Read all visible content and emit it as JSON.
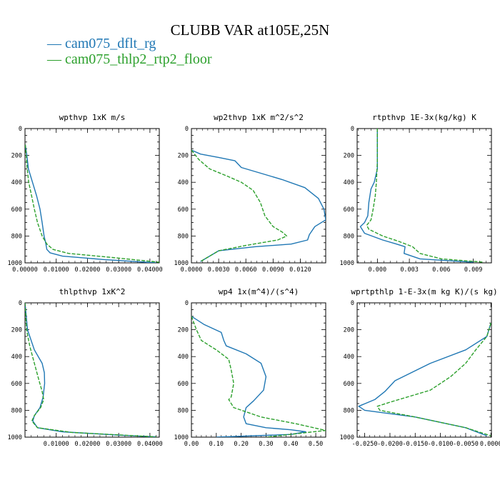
{
  "title": "CLUBB VAR at105E,25N",
  "legend": [
    {
      "label": "cam075_dflt_rg",
      "color": "#1f77b4"
    },
    {
      "label": "cam075_thlp2_rtp2_floor",
      "color": "#2ca02c"
    }
  ],
  "chart_data": [
    {
      "type": "line",
      "title": "wpthvp  1xK m/s",
      "xlim": [
        0,
        0.043
      ],
      "ylim": [
        1000,
        0
      ],
      "xticks": [
        "0.00000",
        "0.01000",
        "0.02000",
        "0.03000",
        "0.04000"
      ],
      "xtick_values": [
        0,
        0.01,
        0.02,
        0.03,
        0.04
      ],
      "yticks": [
        "0",
        "200",
        "400",
        "600",
        "800",
        "1000"
      ],
      "ytick_values": [
        0,
        200,
        400,
        600,
        800,
        1000
      ],
      "series": [
        {
          "name": "cam075_dflt_rg",
          "color": "#1f77b4",
          "dash": "",
          "x": [
            0.0001,
            0.0006,
            0.0011,
            0.0024,
            0.0037,
            0.0048,
            0.0055,
            0.0061,
            0.0066,
            0.007,
            0.008,
            0.012,
            0.025,
            0.042
          ],
          "y": [
            120,
            200,
            300,
            400,
            500,
            600,
            700,
            800,
            850,
            900,
            925,
            950,
            975,
            1000
          ]
        },
        {
          "name": "cam075_thlp2_rtp2_floor",
          "color": "#2ca02c",
          "dash": "5,2",
          "x": [
            0.0001,
            0.0004,
            0.0007,
            0.0012,
            0.0021,
            0.003,
            0.004,
            0.0055,
            0.007,
            0.009,
            0.014,
            0.028,
            0.043
          ],
          "y": [
            120,
            200,
            300,
            400,
            500,
            600,
            700,
            800,
            860,
            900,
            930,
            960,
            995
          ]
        }
      ]
    },
    {
      "type": "line",
      "title": "wp2thvp  1xK m^2/s^2",
      "xlim": [
        0,
        0.0148
      ],
      "ylim": [
        1000,
        0
      ],
      "xticks": [
        "0.0000",
        "0.0030",
        "0.0060",
        "0.0090",
        "0.0120"
      ],
      "xtick_values": [
        0,
        0.003,
        0.006,
        0.009,
        0.012
      ],
      "yticks": [
        "0",
        "200",
        "400",
        "600",
        "800",
        "1000"
      ],
      "ytick_values": [
        0,
        200,
        400,
        600,
        800,
        1000
      ],
      "series": [
        {
          "name": "cam075_dflt_rg",
          "color": "#1f77b4",
          "dash": "",
          "x": [
            0.0,
            0.001,
            0.003,
            0.0048,
            0.0055,
            0.0075,
            0.01,
            0.0125,
            0.014,
            0.0146,
            0.0148,
            0.0136,
            0.013,
            0.0128,
            0.011,
            0.007,
            0.003,
            0.002,
            0.001
          ],
          "y": [
            160,
            190,
            215,
            240,
            290,
            330,
            380,
            440,
            520,
            600,
            680,
            730,
            790,
            830,
            860,
            880,
            910,
            950,
            990
          ]
        },
        {
          "name": "cam075_thlp2_rtp2_floor",
          "color": "#2ca02c",
          "dash": "5,2",
          "x": [
            0.0,
            0.0008,
            0.002,
            0.0038,
            0.0055,
            0.0068,
            0.0076,
            0.0081,
            0.009,
            0.01,
            0.0105,
            0.0095,
            0.006,
            0.003,
            0.001
          ],
          "y": [
            160,
            230,
            300,
            350,
            400,
            460,
            550,
            650,
            730,
            770,
            800,
            830,
            870,
            910,
            990
          ]
        }
      ]
    },
    {
      "type": "line",
      "title": "rtpthvp  1E-3x(kg/kg) K",
      "xlim": [
        -0.0019,
        0.0107
      ],
      "ylim": [
        1000,
        0
      ],
      "xticks": [
        "0.000",
        "0.003",
        "0.006",
        "0.009"
      ],
      "xtick_values": [
        0,
        0.003,
        0.006,
        0.009
      ],
      "yticks": [
        "0",
        "200",
        "400",
        "600",
        "800",
        "1000"
      ],
      "ytick_values": [
        0,
        200,
        400,
        600,
        800,
        1000
      ],
      "series": [
        {
          "name": "cam075_dflt_rg",
          "color": "#1f77b4",
          "dash": "",
          "x": [
            0.0,
            0.0,
            -0.0003,
            -0.0006,
            -0.0008,
            -0.0009,
            -0.0012,
            -0.0016,
            -0.0012,
            0.0005,
            0.0018,
            0.0026,
            0.0025,
            0.004,
            0.009
          ],
          "y": [
            0,
            300,
            400,
            450,
            550,
            650,
            700,
            730,
            780,
            830,
            860,
            880,
            930,
            970,
            995
          ]
        },
        {
          "name": "cam075_thlp2_rtp2_floor",
          "color": "#2ca02c",
          "dash": "5,2",
          "x": [
            0.0,
            0.0,
            -0.0001,
            -0.0002,
            -0.0004,
            -0.0006,
            -0.001,
            -0.0008,
            0.0005,
            0.002,
            0.0033,
            0.004,
            0.006,
            0.01
          ],
          "y": [
            0,
            250,
            400,
            500,
            600,
            680,
            720,
            750,
            800,
            840,
            880,
            930,
            970,
            995
          ]
        }
      ]
    },
    {
      "type": "line",
      "title": "thlpthvp  1xK^2",
      "xlim": [
        0,
        0.043
      ],
      "ylim": [
        1000,
        0
      ],
      "xticks": [
        "0.01000",
        "0.02000",
        "0.03000",
        "0.04000"
      ],
      "xtick_values": [
        0.01,
        0.02,
        0.03,
        0.04
      ],
      "yticks": [
        "0",
        "200",
        "400",
        "600",
        "800",
        "1000"
      ],
      "ytick_values": [
        0,
        200,
        400,
        600,
        800,
        1000
      ],
      "series": [
        {
          "name": "cam075_dflt_rg",
          "color": "#1f77b4",
          "dash": "",
          "x": [
            0.0,
            0.0008,
            0.003,
            0.0055,
            0.0062,
            0.0063,
            0.0058,
            0.0048,
            0.003,
            0.0025,
            0.004,
            0.012,
            0.03,
            0.042
          ],
          "y": [
            0,
            200,
            350,
            450,
            520,
            600,
            700,
            780,
            840,
            880,
            930,
            960,
            985,
            998
          ]
        },
        {
          "name": "cam075_thlp2_rtp2_floor",
          "color": "#2ca02c",
          "dash": "5,2",
          "x": [
            0.0,
            0.0005,
            0.0015,
            0.003,
            0.0045,
            0.0055,
            0.006,
            0.005,
            0.003,
            0.0022,
            0.004,
            0.015,
            0.042
          ],
          "y": [
            0,
            200,
            320,
            450,
            580,
            660,
            720,
            780,
            840,
            880,
            930,
            965,
            998
          ]
        }
      ]
    },
    {
      "type": "line",
      "title": "wp4  1x(m^4)/(s^4)",
      "xlim": [
        0,
        0.54
      ],
      "ylim": [
        1000,
        0
      ],
      "xticks": [
        "0.00",
        "0.10",
        "0.20",
        "0.30",
        "0.40",
        "0.50"
      ],
      "xtick_values": [
        0,
        0.1,
        0.2,
        0.3,
        0.4,
        0.5
      ],
      "yticks": [
        "0",
        "200",
        "400",
        "600",
        "800",
        "1000"
      ],
      "ytick_values": [
        0,
        200,
        400,
        600,
        800,
        1000
      ],
      "series": [
        {
          "name": "cam075_dflt_rg",
          "color": "#1f77b4",
          "dash": "",
          "x": [
            0.0,
            0.05,
            0.12,
            0.13,
            0.14,
            0.22,
            0.28,
            0.3,
            0.29,
            0.25,
            0.22,
            0.21,
            0.22,
            0.3,
            0.4,
            0.46,
            0.4,
            0.1
          ],
          "y": [
            100,
            160,
            220,
            280,
            320,
            380,
            450,
            550,
            650,
            730,
            780,
            850,
            900,
            930,
            945,
            960,
            980,
            1000
          ]
        },
        {
          "name": "cam075_thlp2_rtp2_floor",
          "color": "#2ca02c",
          "dash": "5,2",
          "x": [
            0.0,
            0.02,
            0.04,
            0.1,
            0.15,
            0.16,
            0.17,
            0.16,
            0.15,
            0.17,
            0.28,
            0.42,
            0.54,
            0.3
          ],
          "y": [
            100,
            200,
            280,
            350,
            420,
            500,
            600,
            700,
            720,
            780,
            850,
            900,
            950,
            1000
          ]
        }
      ]
    },
    {
      "type": "line",
      "title": "wprtpthlp  1-E-3x(m kg K)/(s kg)",
      "xlim": [
        -0.0265,
        0.0001
      ],
      "ylim": [
        1000,
        0
      ],
      "xticks": [
        "-0.0250",
        "-0.0200",
        "-0.0150",
        "-0.0100",
        "-0.0050",
        "0.0000"
      ],
      "xtick_values": [
        -0.025,
        -0.02,
        -0.015,
        -0.01,
        -0.005,
        0
      ],
      "yticks": [
        "0",
        "200",
        "400",
        "600",
        "800",
        "1000"
      ],
      "ytick_values": [
        0,
        200,
        400,
        600,
        800,
        1000
      ],
      "series": [
        {
          "name": "cam075_dflt_rg",
          "color": "#1f77b4",
          "dash": "",
          "x": [
            0.0,
            -0.0008,
            -0.005,
            -0.012,
            -0.019,
            -0.021,
            -0.023,
            -0.0262,
            -0.025,
            -0.015,
            -0.005,
            -0.0008
          ],
          "y": [
            150,
            250,
            350,
            450,
            580,
            660,
            720,
            770,
            800,
            850,
            930,
            990
          ]
        },
        {
          "name": "cam075_thlp2_rtp2_floor",
          "color": "#2ca02c",
          "dash": "5,2",
          "x": [
            0.0,
            -0.0008,
            -0.003,
            -0.005,
            -0.008,
            -0.012,
            -0.02,
            -0.0225,
            -0.022,
            -0.015,
            -0.005,
            0.0
          ],
          "y": [
            150,
            250,
            350,
            450,
            550,
            650,
            740,
            770,
            800,
            850,
            930,
            990
          ]
        }
      ]
    }
  ]
}
